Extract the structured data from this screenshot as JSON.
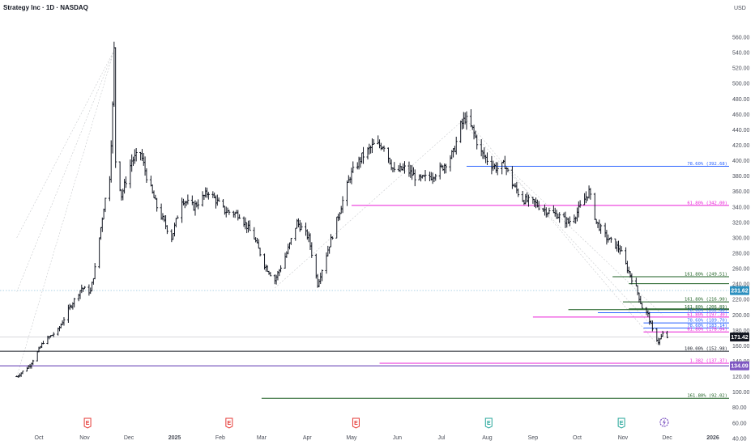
{
  "header": {
    "title": "Strategy Inc · 1D · NASDAQ",
    "currency": "USD"
  },
  "chart_data": {
    "type": "ohlc",
    "title": "Strategy Inc · 1D · NASDAQ",
    "ylabel": "USD",
    "ylim": [
      40,
      580
    ],
    "y_ticks": [
      40,
      60,
      80,
      100,
      120,
      140,
      160,
      180,
      200,
      220,
      240,
      260,
      280,
      300,
      320,
      340,
      360,
      380,
      400,
      420,
      440,
      460,
      480,
      500,
      520,
      540,
      560
    ],
    "x_labels": [
      "Oct",
      "Nov",
      "Dec",
      "2025",
      "Feb",
      "Mar",
      "Apr",
      "May",
      "Jun",
      "Jul",
      "Aug",
      "Sep",
      "Oct",
      "Nov",
      "Dec",
      "2026"
    ],
    "price_path": [
      [
        "2024-09-16",
        120
      ],
      [
        "2024-09-25",
        135
      ],
      [
        "2024-10-04",
        165
      ],
      [
        "2024-10-14",
        180
      ],
      [
        "2024-10-22",
        210
      ],
      [
        "2024-10-30",
        235
      ],
      [
        "2024-11-05",
        230
      ],
      [
        "2024-11-08",
        260
      ],
      [
        "2024-11-11",
        300
      ],
      [
        "2024-11-14",
        340
      ],
      [
        "2024-11-18",
        380
      ],
      [
        "2024-11-20",
        470
      ],
      [
        "2024-11-21",
        543
      ],
      [
        "2024-11-22",
        400
      ],
      [
        "2024-11-26",
        355
      ],
      [
        "2024-12-03",
        400
      ],
      [
        "2024-12-09",
        410
      ],
      [
        "2024-12-13",
        380
      ],
      [
        "2024-12-20",
        340
      ],
      [
        "2024-12-30",
        300
      ],
      [
        "2025-01-06",
        350
      ],
      [
        "2025-01-14",
        340
      ],
      [
        "2025-01-24",
        360
      ],
      [
        "2025-02-04",
        335
      ],
      [
        "2025-02-14",
        330
      ],
      [
        "2025-02-24",
        300
      ],
      [
        "2025-03-03",
        265
      ],
      [
        "2025-03-10",
        245
      ],
      [
        "2025-03-18",
        280
      ],
      [
        "2025-03-25",
        320
      ],
      [
        "2025-04-02",
        300
      ],
      [
        "2025-04-08",
        240
      ],
      [
        "2025-04-15",
        285
      ],
      [
        "2025-04-23",
        335
      ],
      [
        "2025-04-30",
        380
      ],
      [
        "2025-05-08",
        405
      ],
      [
        "2025-05-16",
        420
      ],
      [
        "2025-05-23",
        420
      ],
      [
        "2025-05-30",
        385
      ],
      [
        "2025-06-06",
        390
      ],
      [
        "2025-06-16",
        375
      ],
      [
        "2025-06-24",
        380
      ],
      [
        "2025-07-01",
        390
      ],
      [
        "2025-07-09",
        410
      ],
      [
        "2025-07-14",
        445
      ],
      [
        "2025-07-17",
        455
      ],
      [
        "2025-07-22",
        440
      ],
      [
        "2025-07-28",
        410
      ],
      [
        "2025-08-04",
        395
      ],
      [
        "2025-08-08",
        390
      ],
      [
        "2025-08-13",
        395
      ],
      [
        "2025-08-18",
        370
      ],
      [
        "2025-08-25",
        350
      ],
      [
        "2025-09-02",
        345
      ],
      [
        "2025-09-10",
        335
      ],
      [
        "2025-09-17",
        330
      ],
      [
        "2025-09-25",
        320
      ],
      [
        "2025-09-30",
        330
      ],
      [
        "2025-10-06",
        350
      ],
      [
        "2025-10-09",
        360
      ],
      [
        "2025-10-14",
        320
      ],
      [
        "2025-10-21",
        300
      ],
      [
        "2025-10-30",
        285
      ],
      [
        "2025-11-04",
        260
      ],
      [
        "2025-11-10",
        235
      ],
      [
        "2025-11-14",
        210
      ],
      [
        "2025-11-18",
        200
      ],
      [
        "2025-11-21",
        180
      ],
      [
        "2025-11-25",
        165
      ],
      [
        "2025-11-28",
        175
      ],
      [
        "2025-12-01",
        171.42
      ]
    ],
    "fib_levels": [
      {
        "label": "78.60% (392.68)",
        "value": 392.68,
        "color": "#2962ff"
      },
      {
        "label": "61.80% (342.00)",
        "value": 342.0,
        "color": "#e91ed6"
      },
      {
        "label": "161.80% (249.51)",
        "value": 249.51,
        "color": "#1b5e20"
      },
      {
        "label": "161.80% (216.90)",
        "value": 216.9,
        "color": "#1b5e20"
      },
      {
        "label": "161.80% (206.89)",
        "value": 206.89,
        "color": "#1b5e20"
      },
      {
        "label": "78.60% (202.88)",
        "value": 202.88,
        "color": "#2962ff"
      },
      {
        "label": "61.80% (197.30)",
        "value": 197.3,
        "color": "#e91ed6"
      },
      {
        "label": "78.60% (189.70)",
        "value": 189.7,
        "color": "#2962ff"
      },
      {
        "label": "78.60% (183.14)",
        "value": 183.14,
        "color": "#2962ff"
      },
      {
        "label": "61.80% (178.04)",
        "value": 178.04,
        "color": "#e91ed6"
      },
      {
        "label": "100.00% (152.98)",
        "value": 152.98,
        "color": "#131722"
      },
      {
        "label": "1.382 (137.37)",
        "value": 137.37,
        "color": "#e91ed6"
      },
      {
        "label": "161.80% (92.02)",
        "value": 92.02,
        "color": "#1b5e20"
      }
    ],
    "price_badges": [
      {
        "text": "231.62",
        "value": 231.62,
        "color": "#2b8fbf"
      },
      {
        "text": "171.42",
        "value": 171.42,
        "color": "#131722"
      },
      {
        "text": "134.09",
        "value": 134.09,
        "color": "#7e57c2"
      }
    ],
    "events": [
      "E",
      "E",
      "E",
      "E",
      "E",
      "E"
    ]
  }
}
